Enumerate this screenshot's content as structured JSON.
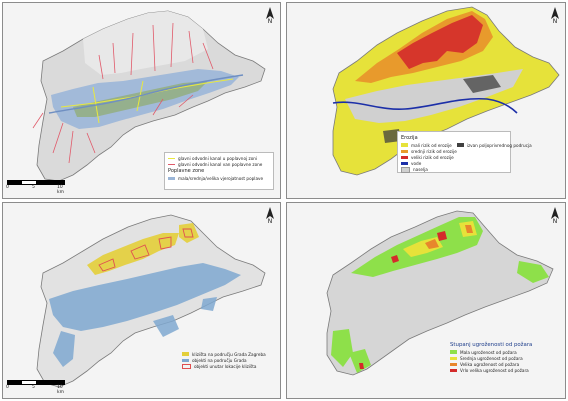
{
  "panels": {
    "p1": {
      "north": "N",
      "scale": {
        "l0": "0",
        "l1": "5",
        "l2": "10 km"
      },
      "legend": {
        "items": [
          {
            "label": "glavni odvodni kanal u poplavnoj zoni",
            "color": "#e8e840",
            "kind": "line"
          },
          {
            "label": "glavni odvodni kanal van poplavne zone",
            "color": "#e05a6a",
            "kind": "line"
          }
        ],
        "title": "Poplavne zone",
        "zone": {
          "label": "mala/srednja/velika vjerojatnost poplave",
          "color": "#9bb6d8"
        }
      }
    },
    "p2": {
      "north": "N",
      "title": "Erozija",
      "left_items": [
        {
          "label": "mali rizik od erozije",
          "color": "#e6e23a"
        },
        {
          "label": "srednji rizik od erozije",
          "color": "#e89a2c"
        },
        {
          "label": "veliki rizik od erozije",
          "color": "#d42b2b"
        },
        {
          "label": "vode",
          "color": "#1c2fa8"
        },
        {
          "label": "naselja",
          "color": "#d0d0d0"
        }
      ],
      "right_items": [
        {
          "label": "izvan poljoprivrednog podrucja",
          "color": "#404040"
        }
      ]
    },
    "p3": {
      "north": "N",
      "scale": {
        "l0": "0",
        "l1": "5",
        "l2": "10 km"
      },
      "legend": {
        "items": [
          {
            "label": "klizišta na području Grada Zagreba",
            "color": "#e4cf3a",
            "kind": "fill"
          },
          {
            "label": "objekti na području Grada",
            "color": "#7fa8d0",
            "kind": "fill"
          },
          {
            "label": "objekti unutar lokacije klizišta",
            "color": "#e05050",
            "kind": "outline"
          }
        ]
      }
    },
    "p4": {
      "north": "N",
      "title": "Stupanj ugroženosti od požara",
      "items": [
        {
          "label": "Mala ugroženost od požara",
          "color": "#8ee04a"
        },
        {
          "label": "Srednja ugroženost od požara",
          "color": "#e6e23a"
        },
        {
          "label": "Velika ugroženost od požara",
          "color": "#e8862c"
        },
        {
          "label": "Vrlo velika ugroženost od požara",
          "color": "#d42b2b"
        }
      ]
    }
  }
}
